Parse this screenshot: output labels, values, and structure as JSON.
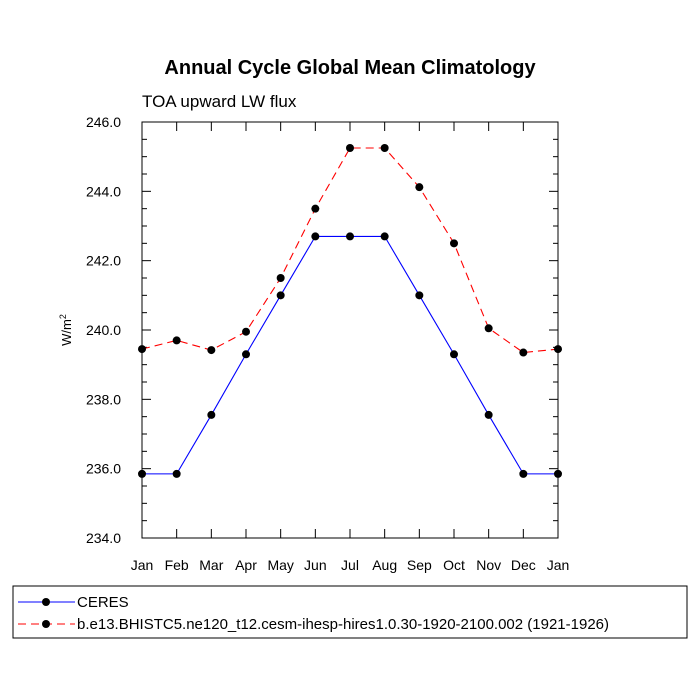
{
  "chart_data": {
    "type": "line",
    "title": "Annual Cycle Global Mean Climatology",
    "subtitle": "TOA upward LW flux",
    "ylabel": "W/m",
    "ylabel_sup": "2",
    "ylim": [
      234.0,
      246.0
    ],
    "yticks": [
      "234.0",
      "236.0",
      "238.0",
      "240.0",
      "242.0",
      "244.0",
      "246.0"
    ],
    "categories": [
      "Jan",
      "Feb",
      "Mar",
      "Apr",
      "May",
      "Jun",
      "Jul",
      "Aug",
      "Sep",
      "Oct",
      "Nov",
      "Dec",
      "Jan"
    ],
    "series": [
      {
        "name": "CERES",
        "color": "#0000ff",
        "dash": "solid",
        "values": [
          235.85,
          235.85,
          237.55,
          239.3,
          241.0,
          242.7,
          242.7,
          242.7,
          241.0,
          239.3,
          237.55,
          235.85,
          235.85
        ]
      },
      {
        "name": "b.e13.BHISTC5.ne120_t12.cesm-ihesp-hires1.0.30-1920-2100.002 (1921-1926)",
        "color": "#ff0000",
        "dash": "dashed",
        "values": [
          239.45,
          239.7,
          239.42,
          239.95,
          241.5,
          243.5,
          245.25,
          245.25,
          244.12,
          242.5,
          240.05,
          239.35,
          239.45
        ]
      }
    ],
    "grid": false,
    "legend_position": "bottom"
  }
}
